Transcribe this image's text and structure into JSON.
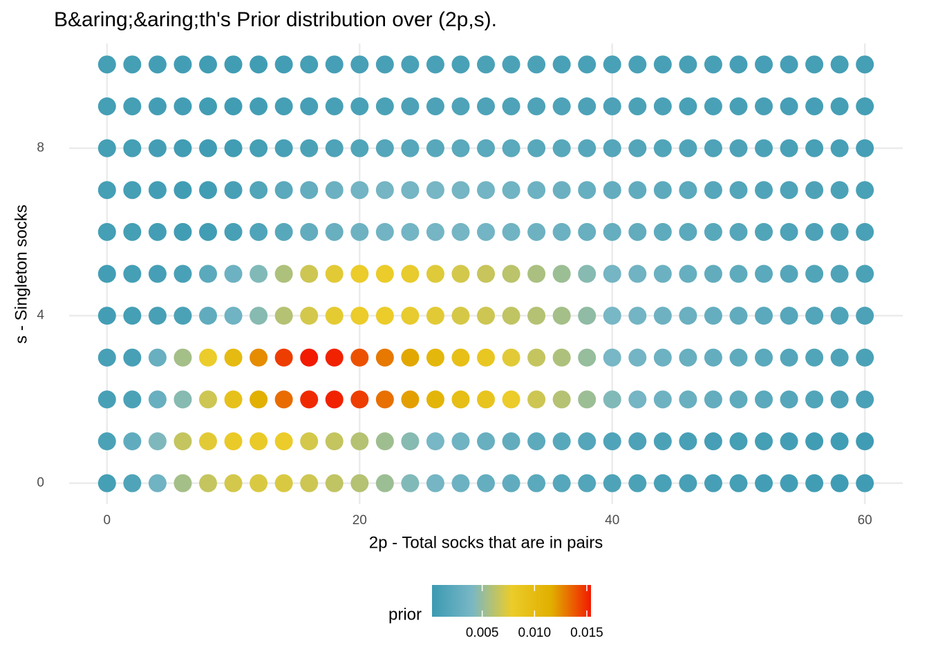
{
  "chart_data": {
    "type": "dot-heatmap",
    "title": "B&aring;&aring;th's Prior distribution over (2p,s).",
    "x_label": "2p - Total socks that are in pairs",
    "y_label": "s - Singleton socks",
    "x": [
      0,
      2,
      4,
      6,
      8,
      10,
      12,
      14,
      16,
      18,
      20,
      22,
      24,
      26,
      28,
      30,
      32,
      34,
      36,
      38,
      40,
      42,
      44,
      46,
      48,
      50,
      52,
      54,
      56,
      58,
      60
    ],
    "y": [
      0,
      1,
      2,
      3,
      4,
      5,
      6,
      7,
      8,
      9,
      10
    ],
    "values": [
      [
        0.0008,
        0.0015,
        0.0035,
        0.0055,
        0.0065,
        0.007,
        0.0072,
        0.0072,
        0.0068,
        0.0064,
        0.006,
        0.0052,
        0.0043,
        0.0038,
        0.0033,
        0.0028,
        0.0025,
        0.0022,
        0.0019,
        0.0017,
        0.0014,
        0.0012,
        0.0011,
        0.001,
        0.0009,
        0.0008,
        0.0007,
        0.0007,
        0.0006,
        0.0005,
        0.0005
      ],
      [
        0.0012,
        0.0025,
        0.0042,
        0.0065,
        0.0075,
        0.008,
        0.008,
        0.0078,
        0.007,
        0.0065,
        0.006,
        0.0053,
        0.0045,
        0.004,
        0.0035,
        0.003,
        0.0026,
        0.0023,
        0.002,
        0.0018,
        0.0015,
        0.0013,
        0.0012,
        0.001,
        0.0009,
        0.0008,
        0.0008,
        0.0007,
        0.0006,
        0.0006,
        0.0005
      ],
      [
        0.001,
        0.0012,
        0.003,
        0.0045,
        0.0068,
        0.0092,
        0.0115,
        0.0133,
        0.015,
        0.0152,
        0.0145,
        0.0132,
        0.012,
        0.0108,
        0.0097,
        0.0088,
        0.0078,
        0.0068,
        0.006,
        0.0052,
        0.0043,
        0.0038,
        0.0034,
        0.003,
        0.0027,
        0.0024,
        0.0021,
        0.0018,
        0.0016,
        0.0013,
        0.0011
      ],
      [
        0.001,
        0.001,
        0.003,
        0.0055,
        0.0078,
        0.01,
        0.0125,
        0.0145,
        0.0154,
        0.0152,
        0.014,
        0.013,
        0.0118,
        0.0105,
        0.0095,
        0.0085,
        0.0075,
        0.0065,
        0.0058,
        0.005,
        0.004,
        0.0037,
        0.0033,
        0.003,
        0.0027,
        0.0024,
        0.0021,
        0.0018,
        0.0016,
        0.0014,
        0.0012
      ],
      [
        0.0007,
        0.0008,
        0.001,
        0.0012,
        0.0025,
        0.0035,
        0.0045,
        0.006,
        0.007,
        0.0076,
        0.0078,
        0.0078,
        0.0077,
        0.0075,
        0.0071,
        0.0068,
        0.0064,
        0.006,
        0.0055,
        0.0048,
        0.004,
        0.0037,
        0.0034,
        0.0031,
        0.0028,
        0.0025,
        0.0022,
        0.0019,
        0.0017,
        0.0015,
        0.0013
      ],
      [
        0.0007,
        0.0008,
        0.0009,
        0.0011,
        0.0022,
        0.0033,
        0.0043,
        0.0058,
        0.0068,
        0.0075,
        0.0078,
        0.0078,
        0.0077,
        0.0074,
        0.007,
        0.0066,
        0.0062,
        0.0057,
        0.0052,
        0.0045,
        0.0038,
        0.0035,
        0.0032,
        0.0029,
        0.0026,
        0.0024,
        0.0021,
        0.0018,
        0.0016,
        0.0014,
        0.0012
      ],
      [
        0.0008,
        0.0008,
        0.0007,
        0.0006,
        0.0006,
        0.001,
        0.0015,
        0.002,
        0.0026,
        0.003,
        0.0034,
        0.0036,
        0.0037,
        0.0038,
        0.0038,
        0.0037,
        0.0035,
        0.0034,
        0.0032,
        0.003,
        0.0028,
        0.0026,
        0.0024,
        0.0022,
        0.002,
        0.0018,
        0.0016,
        0.0014,
        0.0013,
        0.0012,
        0.0011
      ],
      [
        0.0008,
        0.0008,
        0.0007,
        0.0006,
        0.0006,
        0.001,
        0.0016,
        0.0021,
        0.0027,
        0.0032,
        0.0036,
        0.0038,
        0.0038,
        0.0039,
        0.0038,
        0.0037,
        0.0035,
        0.0033,
        0.0031,
        0.0029,
        0.0027,
        0.0025,
        0.0023,
        0.0021,
        0.0019,
        0.0017,
        0.0015,
        0.0014,
        0.0013,
        0.0012,
        0.0011
      ],
      [
        0.0008,
        0.0008,
        0.0007,
        0.0006,
        0.0005,
        0.0006,
        0.0008,
        0.001,
        0.0012,
        0.0014,
        0.0016,
        0.0018,
        0.0019,
        0.002,
        0.0021,
        0.0021,
        0.0021,
        0.002,
        0.002,
        0.0019,
        0.0018,
        0.0017,
        0.0016,
        0.0015,
        0.0014,
        0.0013,
        0.0012,
        0.0011,
        0.001,
        0.001,
        0.0009
      ],
      [
        0.0008,
        0.0008,
        0.0007,
        0.0007,
        0.0006,
        0.0006,
        0.0007,
        0.0008,
        0.0009,
        0.001,
        0.0011,
        0.0012,
        0.0013,
        0.0013,
        0.0014,
        0.0014,
        0.0014,
        0.0014,
        0.0014,
        0.0013,
        0.0013,
        0.0012,
        0.0012,
        0.0011,
        0.0011,
        0.001,
        0.001,
        0.0009,
        0.0009,
        0.0008,
        0.0008
      ],
      [
        0.0008,
        0.0008,
        0.0007,
        0.0007,
        0.0006,
        0.0006,
        0.0006,
        0.0007,
        0.0008,
        0.0009,
        0.001,
        0.001,
        0.0011,
        0.0011,
        0.0011,
        0.0012,
        0.0012,
        0.0012,
        0.0011,
        0.0011,
        0.0011,
        0.0011,
        0.001,
        0.001,
        0.001,
        0.0009,
        0.0009,
        0.0009,
        0.0008,
        0.0008,
        0.0008
      ]
    ],
    "xlim": [
      -3,
      63
    ],
    "ylim": [
      -0.5,
      10.5
    ],
    "xticks": [
      0,
      20,
      40,
      60
    ],
    "yticks": [
      0,
      4,
      8
    ],
    "grid": true,
    "legend": {
      "title": "prior",
      "position": "bottom",
      "limits": [
        0.0002,
        0.0154
      ],
      "colors": [
        "#3B9AB2",
        "#78B7C5",
        "#EBCC2A",
        "#E1AF00",
        "#F21A00"
      ],
      "ticks": [
        0.005,
        {
          "value": 0.01,
          "label": "0.010"
        },
        0.015
      ]
    }
  }
}
